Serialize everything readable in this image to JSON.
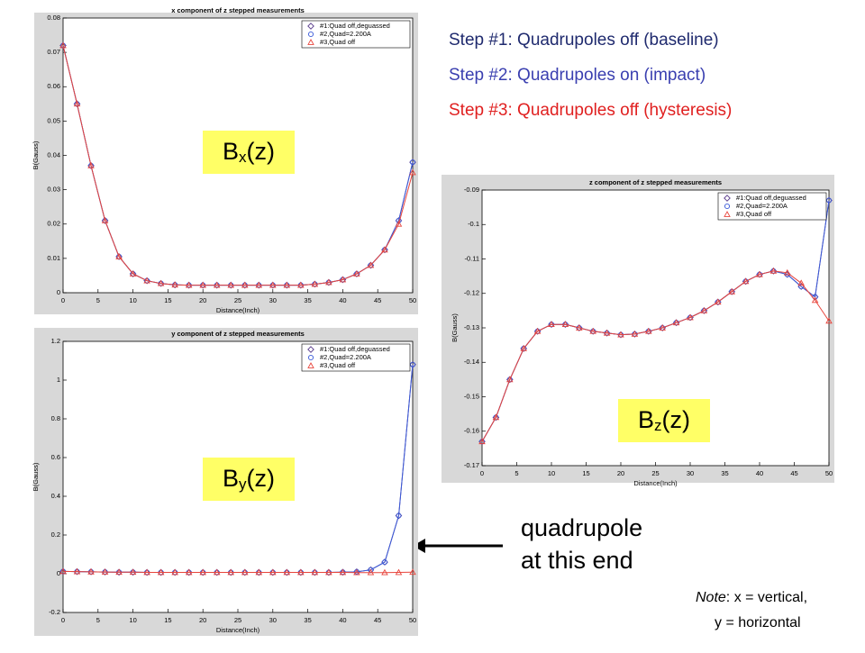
{
  "chart_data": [
    {
      "type": "line",
      "title": "x component of z stepped measurements",
      "x_label": "Distance(Inch)",
      "y_label": "B(Gauss)",
      "x": [
        0,
        2,
        4,
        6,
        8,
        10,
        12,
        14,
        16,
        18,
        20,
        22,
        24,
        26,
        28,
        30,
        32,
        34,
        36,
        38,
        40,
        42,
        44,
        46,
        48,
        50
      ],
      "series": [
        {
          "name": "#1:Quad off,deguassed",
          "color": "#5a3c8c",
          "marker": "diamond",
          "values": [
            0.072,
            0.055,
            0.037,
            0.021,
            0.0105,
            0.0055,
            0.0035,
            0.0027,
            0.0023,
            0.0022,
            0.0022,
            0.0022,
            0.0022,
            0.0022,
            0.0022,
            0.0022,
            0.0022,
            0.0022,
            0.0025,
            0.003,
            0.0038,
            0.0055,
            0.008,
            0.0125,
            0.021,
            0.038
          ]
        },
        {
          "name": "#2,Quad=2.200A",
          "color": "#3b5bd9",
          "marker": "circle",
          "values": [
            0.072,
            0.055,
            0.037,
            0.021,
            0.0105,
            0.0055,
            0.0035,
            0.0027,
            0.0023,
            0.0022,
            0.0022,
            0.0022,
            0.0022,
            0.0022,
            0.0022,
            0.0022,
            0.0022,
            0.0022,
            0.0025,
            0.003,
            0.0038,
            0.0055,
            0.008,
            0.0125,
            0.021,
            0.038
          ]
        },
        {
          "name": "#3,Quad off",
          "color": "#e8453c",
          "marker": "triangle",
          "values": [
            0.072,
            0.055,
            0.037,
            0.021,
            0.0105,
            0.0055,
            0.0035,
            0.0027,
            0.0023,
            0.0022,
            0.0022,
            0.0022,
            0.0022,
            0.0022,
            0.0022,
            0.0022,
            0.0022,
            0.0022,
            0.0025,
            0.003,
            0.0038,
            0.0055,
            0.008,
            0.0125,
            0.02,
            0.035
          ]
        }
      ],
      "xlim": [
        0,
        50
      ],
      "xticks": [
        0,
        5,
        10,
        15,
        20,
        25,
        30,
        35,
        40,
        45,
        50
      ],
      "ylim": [
        0,
        0.08
      ],
      "yticks": [
        0,
        0.01,
        0.02,
        0.03,
        0.04,
        0.05,
        0.06,
        0.07,
        0.08
      ],
      "legend": "upper right",
      "label": {
        "main": "B",
        "sub": "x",
        "rest": "(z)"
      }
    },
    {
      "type": "line",
      "title": "y component of z stepped measurements",
      "x_label": "Distance(Inch)",
      "y_label": "B(Gauss)",
      "x": [
        0,
        2,
        4,
        6,
        8,
        10,
        12,
        14,
        16,
        18,
        20,
        22,
        24,
        26,
        28,
        30,
        32,
        34,
        36,
        38,
        40,
        42,
        44,
        46,
        48,
        50
      ],
      "series": [
        {
          "name": "#1:Quad off,deguassed",
          "color": "#5a3c8c",
          "marker": "diamond",
          "values": [
            0.012,
            0.011,
            0.01,
            0.009,
            0.008,
            0.008,
            0.007,
            0.007,
            0.007,
            0.007,
            0.007,
            0.007,
            0.007,
            0.007,
            0.007,
            0.007,
            0.007,
            0.007,
            0.007,
            0.007,
            0.008,
            0.01,
            0.02,
            0.06,
            0.3,
            1.08
          ]
        },
        {
          "name": "#2,Quad=2.200A",
          "color": "#3b5bd9",
          "marker": "circle",
          "values": [
            0.012,
            0.011,
            0.01,
            0.009,
            0.008,
            0.008,
            0.007,
            0.007,
            0.007,
            0.007,
            0.007,
            0.007,
            0.007,
            0.007,
            0.007,
            0.007,
            0.007,
            0.007,
            0.007,
            0.007,
            0.008,
            0.01,
            0.02,
            0.06,
            0.3,
            1.08
          ]
        },
        {
          "name": "#3,Quad off",
          "color": "#e8453c",
          "marker": "triangle",
          "values": [
            0.012,
            0.011,
            0.01,
            0.009,
            0.008,
            0.008,
            0.007,
            0.007,
            0.007,
            0.007,
            0.007,
            0.007,
            0.007,
            0.007,
            0.007,
            0.007,
            0.007,
            0.007,
            0.007,
            0.007,
            0.007,
            0.006,
            0.006,
            0.006,
            0.007,
            0.008
          ]
        }
      ],
      "xlim": [
        0,
        50
      ],
      "xticks": [
        0,
        5,
        10,
        15,
        20,
        25,
        30,
        35,
        40,
        45,
        50
      ],
      "ylim": [
        -0.2,
        1.2
      ],
      "yticks": [
        -0.2,
        0,
        0.2,
        0.4,
        0.6,
        0.8,
        1,
        1.2
      ],
      "legend": "upper right",
      "label": {
        "main": "B",
        "sub": "y",
        "rest": "(z)"
      }
    },
    {
      "type": "line",
      "title": "z component of z stepped measurements",
      "x_label": "Distance(Inch)",
      "y_label": "B(Gauss)",
      "x": [
        0,
        2,
        4,
        6,
        8,
        10,
        12,
        14,
        16,
        18,
        20,
        22,
        24,
        26,
        28,
        30,
        32,
        34,
        36,
        38,
        40,
        42,
        44,
        46,
        48,
        50
      ],
      "series": [
        {
          "name": "#1:Quad off,deguassed",
          "color": "#5a3c8c",
          "marker": "diamond",
          "values": [
            -0.163,
            -0.156,
            -0.145,
            -0.136,
            -0.131,
            -0.129,
            -0.129,
            -0.13,
            -0.131,
            -0.1315,
            -0.132,
            -0.1318,
            -0.131,
            -0.13,
            -0.1285,
            -0.127,
            -0.125,
            -0.1225,
            -0.1195,
            -0.1165,
            -0.1145,
            -0.1135,
            -0.1145,
            -0.118,
            -0.121,
            -0.093
          ]
        },
        {
          "name": "#2,Quad=2.200A",
          "color": "#3b5bd9",
          "marker": "circle",
          "values": [
            -0.163,
            -0.156,
            -0.145,
            -0.136,
            -0.131,
            -0.129,
            -0.129,
            -0.13,
            -0.131,
            -0.1315,
            -0.132,
            -0.1318,
            -0.131,
            -0.13,
            -0.1285,
            -0.127,
            -0.125,
            -0.1225,
            -0.1195,
            -0.1165,
            -0.1145,
            -0.1135,
            -0.1145,
            -0.118,
            -0.121,
            -0.093
          ]
        },
        {
          "name": "#3,Quad off",
          "color": "#e8453c",
          "marker": "triangle",
          "values": [
            -0.163,
            -0.156,
            -0.145,
            -0.136,
            -0.131,
            -0.129,
            -0.129,
            -0.13,
            -0.131,
            -0.1315,
            -0.132,
            -0.1318,
            -0.131,
            -0.13,
            -0.1285,
            -0.127,
            -0.125,
            -0.1225,
            -0.1195,
            -0.1165,
            -0.1145,
            -0.1135,
            -0.114,
            -0.117,
            -0.122,
            -0.128
          ]
        }
      ],
      "xlim": [
        0,
        50
      ],
      "xticks": [
        0,
        5,
        10,
        15,
        20,
        25,
        30,
        35,
        40,
        45,
        50
      ],
      "ylim": [
        -0.17,
        -0.09
      ],
      "yticks": [
        -0.17,
        -0.16,
        -0.15,
        -0.14,
        -0.13,
        -0.12,
        -0.11,
        -0.1,
        -0.09
      ],
      "legend": "upper right",
      "label": {
        "main": "B",
        "sub": "z",
        "rest": "(z)"
      }
    }
  ],
  "steps": [
    {
      "text": "Step #1: Quadrupoles off (baseline)",
      "color": "#1f2a6e"
    },
    {
      "text": "Step #2: Quadrupoles on (impact)",
      "color": "#3a3fb0"
    },
    {
      "text": "Step #3: Quadrupoles off (hysteresis)",
      "color": "#e02020"
    }
  ],
  "annotation": [
    "quadrupole",
    "at this end"
  ],
  "note": {
    "label": "Note",
    "line1": ": x = vertical,",
    "line2": "y = horizontal"
  }
}
